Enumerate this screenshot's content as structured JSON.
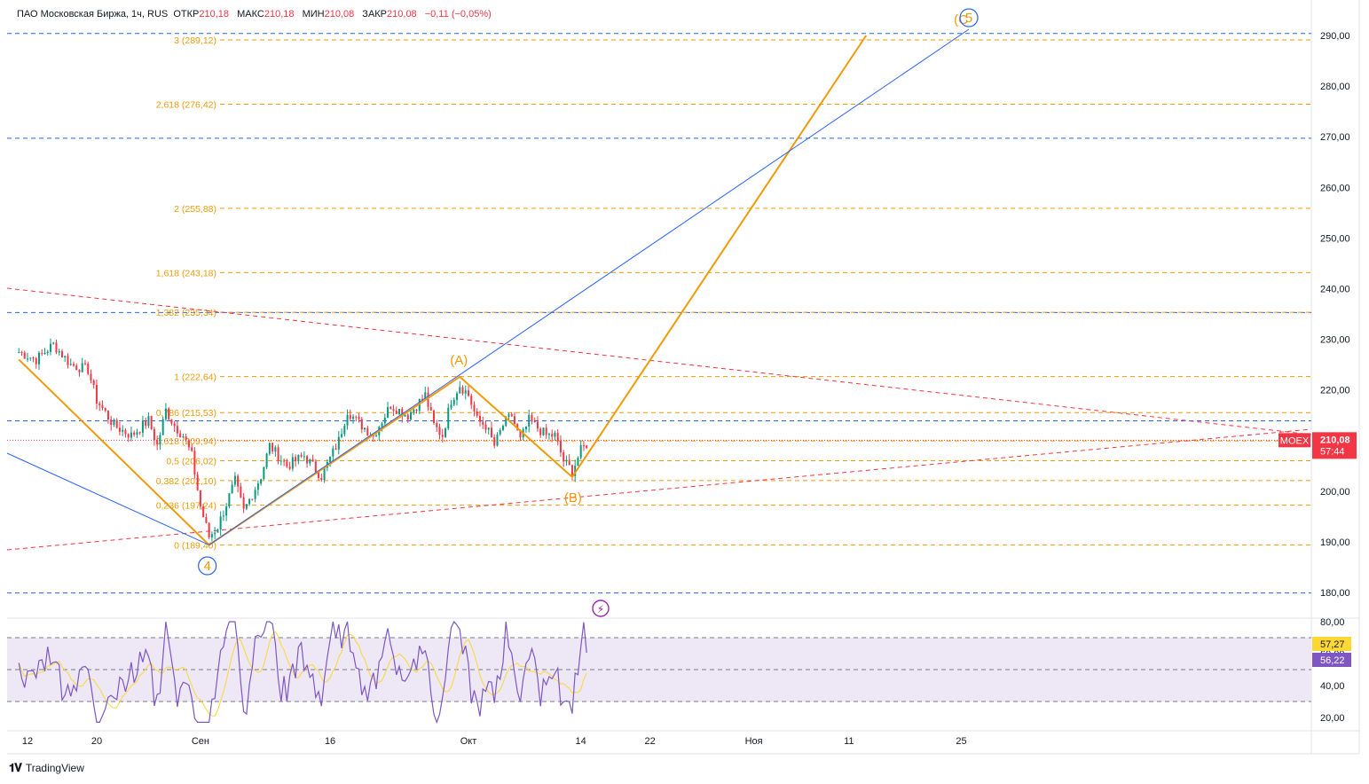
{
  "header": {
    "symbol": "ПАО Московская Биржа, 1ч, RUS",
    "open_label": "ОТКР",
    "open": "210,18",
    "high_label": "МАКС",
    "high": "210,18",
    "low_label": "МИН",
    "low": "210,08",
    "close_label": "ЗАКР",
    "close": "210,08",
    "change": "−0,11 (−0,05%)"
  },
  "footer": {
    "logo": "TradingView"
  },
  "colors": {
    "fib": "#f09a07",
    "blue": "#2962ff",
    "red_dash": "#f23645",
    "candle_up": "#089981",
    "candle_down": "#f23645",
    "rsi": "#7e57c2",
    "rsi_ma": "#fdd835",
    "rsi_band": "#ede7f6"
  },
  "chart_data": [
    {
      "type": "candlestick",
      "ylim": [
        175,
        295
      ],
      "price_ticks": [
        "290,00",
        "280,00",
        "270,00",
        "260,00",
        "250,00",
        "240,00",
        "230,00",
        "220,00",
        "210,00",
        "200,00",
        "190,00",
        "180,00"
      ],
      "price_tick_values": [
        290,
        280,
        270,
        260,
        250,
        240,
        230,
        220,
        210,
        200,
        190,
        180
      ],
      "x_ticks": [
        "12",
        "20",
        "Сен",
        "16",
        "Окт",
        "14",
        "22",
        "Ноя",
        "11",
        "25"
      ],
      "x_tick_days": [
        0,
        8,
        20,
        35,
        51,
        64,
        72,
        84,
        95,
        108
      ],
      "fib_levels": [
        {
          "label": "3 (289,12)",
          "value": 289.12
        },
        {
          "label": "2,618 (276,42)",
          "value": 276.42
        },
        {
          "label": "2 (255,88)",
          "value": 255.88
        },
        {
          "label": "1,618 (243,18)",
          "value": 243.18
        },
        {
          "label": "1,382 (235,34)",
          "value": 235.34
        },
        {
          "label": "1 (222,64)",
          "value": 222.64
        },
        {
          "label": "0,786 (215,53)",
          "value": 215.53
        },
        {
          "label": "0,618 (209,94)",
          "value": 209.94
        },
        {
          "label": "0,5 (206,02)",
          "value": 206.02
        },
        {
          "label": "0,382 (202,10)",
          "value": 202.1
        },
        {
          "label": "0,236 (197,24)",
          "value": 197.24
        },
        {
          "label": "0 (189,40)",
          "value": 189.4
        }
      ],
      "blue_levels": [
        290.4,
        269.7,
        235.3,
        213.9,
        179.9
      ],
      "wave_labels": {
        "w4": "4",
        "A": "(A)",
        "B": "(B)",
        "C": "(C",
        "w5": "5"
      },
      "wave_points": [
        {
          "day": -1,
          "price": 226.0
        },
        {
          "day": 21,
          "price": 189.4
        },
        {
          "day": 50,
          "price": 222.6
        },
        {
          "day": 63,
          "price": 202.8
        },
        {
          "day": 97,
          "price": 290.0
        }
      ],
      "price_path": [
        [
          -1,
          227.5
        ],
        [
          1,
          226
        ],
        [
          3,
          229
        ],
        [
          5,
          225
        ],
        [
          7,
          224
        ],
        [
          8,
          218
        ],
        [
          10,
          213
        ],
        [
          12,
          211
        ],
        [
          14,
          214
        ],
        [
          15,
          209
        ],
        [
          16,
          216
        ],
        [
          17,
          213
        ],
        [
          18,
          211
        ],
        [
          19,
          207
        ],
        [
          20,
          197
        ],
        [
          21,
          191
        ],
        [
          22,
          193
        ],
        [
          24,
          202
        ],
        [
          25,
          196
        ],
        [
          27,
          203
        ],
        [
          28,
          209
        ],
        [
          30,
          205
        ],
        [
          32,
          207
        ],
        [
          34,
          203
        ],
        [
          36,
          210
        ],
        [
          37,
          216
        ],
        [
          38,
          214
        ],
        [
          40,
          211
        ],
        [
          42,
          217
        ],
        [
          44,
          215
        ],
        [
          46,
          219
        ],
        [
          47,
          213
        ],
        [
          48,
          211
        ],
        [
          49,
          218
        ],
        [
          50,
          221
        ],
        [
          51,
          219
        ],
        [
          52,
          214
        ],
        [
          53,
          213
        ],
        [
          54,
          209
        ],
        [
          55,
          213
        ],
        [
          56,
          215
        ],
        [
          57,
          210
        ],
        [
          58,
          214
        ],
        [
          60,
          211
        ],
        [
          61,
          211
        ],
        [
          62,
          206
        ],
        [
          63,
          204
        ],
        [
          64,
          208
        ],
        [
          65,
          210
        ]
      ],
      "current_price_tag": {
        "symbol": "MOEX",
        "price": "210,08",
        "timer": "57:44",
        "value": 210.08
      }
    },
    {
      "type": "line",
      "name": "RSI",
      "ylim": [
        15,
        82
      ],
      "ticks": [
        "80,00",
        "60,00",
        "40,00",
        "20,00"
      ],
      "tick_values": [
        80,
        60,
        40,
        20
      ],
      "band": [
        30,
        70
      ],
      "rsi_value": "56,22",
      "rsi_ma_value": "57,27"
    }
  ]
}
